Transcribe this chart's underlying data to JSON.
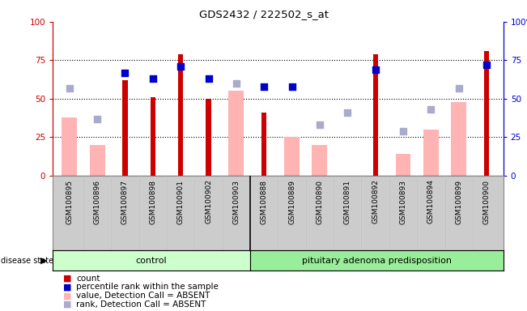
{
  "title": "GDS2432 / 222502_s_at",
  "samples": [
    "GSM100895",
    "GSM100896",
    "GSM100897",
    "GSM100898",
    "GSM100901",
    "GSM100902",
    "GSM100903",
    "GSM100888",
    "GSM100889",
    "GSM100890",
    "GSM100891",
    "GSM100892",
    "GSM100893",
    "GSM100894",
    "GSM100899",
    "GSM100900"
  ],
  "n_control": 7,
  "n_disease": 9,
  "disease_group": "control",
  "disease_group2": "pituitary adenoma predisposition",
  "red_bars": [
    0,
    0,
    62,
    51,
    79,
    50,
    0,
    41,
    0,
    0,
    0,
    79,
    0,
    0,
    0,
    81
  ],
  "pink_bars": [
    38,
    20,
    0,
    0,
    0,
    0,
    55,
    0,
    25,
    20,
    0,
    0,
    14,
    30,
    48,
    0
  ],
  "blue_squares": [
    0,
    0,
    67,
    63,
    71,
    63,
    0,
    58,
    58,
    0,
    0,
    69,
    0,
    0,
    0,
    72
  ],
  "lavender_squares": [
    57,
    37,
    0,
    0,
    0,
    0,
    60,
    0,
    0,
    33,
    41,
    0,
    29,
    43,
    57,
    0
  ],
  "ylim": [
    0,
    100
  ],
  "grid_lines": [
    25,
    50,
    75
  ],
  "red_color": "#cc0000",
  "pink_color": "#ffb3b3",
  "blue_color": "#0000cc",
  "lavender_color": "#aaaacc",
  "bg_color": "#ffffff",
  "control_color": "#ccffcc",
  "disease_color": "#99ee99",
  "tick_bg_color": "#cccccc",
  "axis_left_color": "#cc0000",
  "axis_right_color": "#0000cc",
  "legend_labels": [
    "count",
    "percentile rank within the sample",
    "value, Detection Call = ABSENT",
    "rank, Detection Call = ABSENT"
  ]
}
